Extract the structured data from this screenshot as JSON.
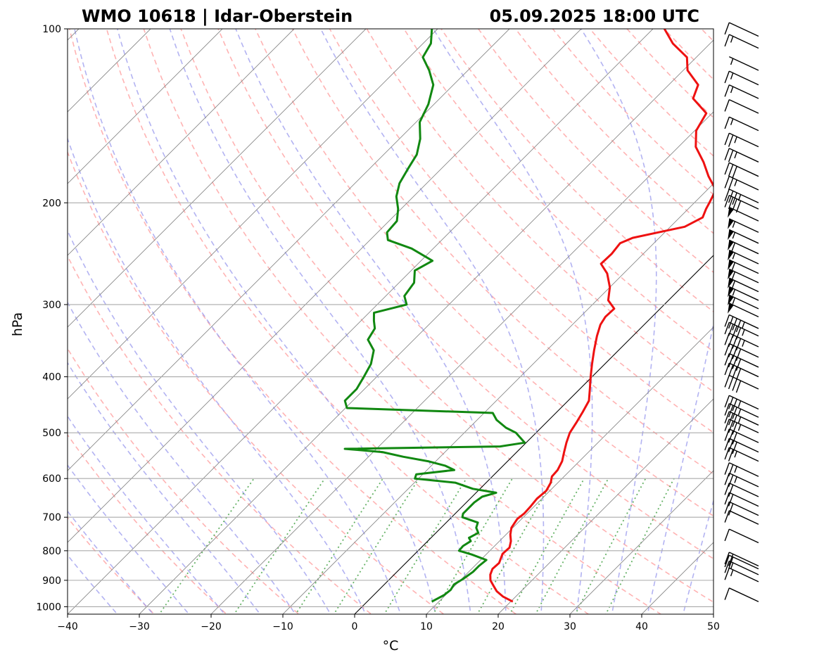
{
  "chart_data": {
    "type": "skew-t",
    "title_left": "WMO 10618 | Idar-Oberstein",
    "title_right": "05.09.2025 18:00 UTC",
    "xlabel": "°C",
    "ylabel": "hPa",
    "xlim": [
      -40,
      50
    ],
    "ylim": [
      1030,
      100
    ],
    "xticks": [
      -40,
      -30,
      -20,
      -10,
      0,
      10,
      20,
      30,
      40,
      50
    ],
    "xtick_labels": [
      "−40",
      "−30",
      "−20",
      "−10",
      "0",
      "10",
      "20",
      "30",
      "40",
      "50"
    ],
    "yticks": [
      1000,
      900,
      800,
      700,
      600,
      500,
      400,
      300,
      200,
      100
    ],
    "ytick_labels": [
      "1000",
      "900",
      "800",
      "700",
      "600",
      "500",
      "400",
      "300",
      "200",
      "100"
    ],
    "grid": true,
    "colors": {
      "temperature": "#ee1111",
      "dewpoint": "#118811",
      "dry_adiabats": "#ff9999",
      "moist_adiabats": "#9999ee",
      "mixing_ratio": "#55aa55",
      "isotherms": "#888888",
      "zero_isotherm": "#000000",
      "isobars": "#aaaaaa",
      "barbs": "#000000"
    },
    "series": [
      {
        "key": "temperature",
        "points": [
          [
            980,
            20.3
          ],
          [
            960,
            18.2
          ],
          [
            940,
            16.6
          ],
          [
            920,
            15.4
          ],
          [
            900,
            14.2
          ],
          [
            880,
            13.4
          ],
          [
            860,
            12.9
          ],
          [
            840,
            13.0
          ],
          [
            810,
            12.2
          ],
          [
            790,
            12.3
          ],
          [
            770,
            11.6
          ],
          [
            750,
            10.6
          ],
          [
            730,
            9.8
          ],
          [
            705,
            9.4
          ],
          [
            690,
            9.6
          ],
          [
            670,
            9.5
          ],
          [
            650,
            9.3
          ],
          [
            630,
            9.5
          ],
          [
            610,
            9.0
          ],
          [
            595,
            8.3
          ],
          [
            580,
            8.2
          ],
          [
            560,
            7.6
          ],
          [
            540,
            6.6
          ],
          [
            520,
            5.6
          ],
          [
            500,
            4.7
          ],
          [
            480,
            4.2
          ],
          [
            460,
            3.6
          ],
          [
            440,
            2.9
          ],
          [
            420,
            1.4
          ],
          [
            400,
            -0.2
          ],
          [
            380,
            -1.8
          ],
          [
            360,
            -3.4
          ],
          [
            340,
            -5.0
          ],
          [
            325,
            -6.1
          ],
          [
            315,
            -6.5
          ],
          [
            305,
            -6.4
          ],
          [
            295,
            -8.4
          ],
          [
            280,
            -10.0
          ],
          [
            265,
            -12.3
          ],
          [
            255,
            -14.5
          ],
          [
            245,
            -14.4
          ],
          [
            235,
            -14.7
          ],
          [
            230,
            -13.7
          ],
          [
            225,
            -10.9
          ],
          [
            220,
            -8.0
          ],
          [
            212,
            -6.8
          ],
          [
            205,
            -7.5
          ],
          [
            200,
            -7.9
          ],
          [
            190,
            -8.8
          ],
          [
            180,
            -11.7
          ],
          [
            170,
            -14.4
          ],
          [
            160,
            -17.6
          ],
          [
            150,
            -19.8
          ],
          [
            140,
            -20.8
          ],
          [
            132,
            -24.7
          ],
          [
            125,
            -25.9
          ],
          [
            118,
            -29.4
          ],
          [
            112,
            -31.3
          ],
          [
            106,
            -35.2
          ],
          [
            100,
            -38.4
          ]
        ]
      },
      {
        "key": "dewpoint",
        "points": [
          [
            980,
            9.0
          ],
          [
            955,
            9.8
          ],
          [
            935,
            10.0
          ],
          [
            915,
            9.7
          ],
          [
            895,
            10.2
          ],
          [
            870,
            10.6
          ],
          [
            850,
            10.6
          ],
          [
            830,
            10.8
          ],
          [
            812,
            8.0
          ],
          [
            800,
            5.7
          ],
          [
            785,
            5.6
          ],
          [
            770,
            6.0
          ],
          [
            760,
            5.3
          ],
          [
            745,
            5.9
          ],
          [
            730,
            4.9
          ],
          [
            715,
            4.4
          ],
          [
            700,
            1.5
          ],
          [
            690,
            1.1
          ],
          [
            675,
            1.1
          ],
          [
            660,
            1.1
          ],
          [
            645,
            1.4
          ],
          [
            635,
            2.8
          ],
          [
            625,
            -1.0
          ],
          [
            610,
            -4.3
          ],
          [
            600,
            -10.5
          ],
          [
            590,
            -10.9
          ],
          [
            580,
            -6.2
          ],
          [
            570,
            -8.1
          ],
          [
            560,
            -11.1
          ],
          [
            550,
            -15.2
          ],
          [
            540,
            -18.7
          ],
          [
            533,
            -24.4
          ],
          [
            528,
            -3.1
          ],
          [
            520,
            -0.2
          ],
          [
            510,
            -1.5
          ],
          [
            500,
            -2.8
          ],
          [
            490,
            -4.9
          ],
          [
            475,
            -7.3
          ],
          [
            462,
            -8.8
          ],
          [
            453,
            -29.8
          ],
          [
            440,
            -31.1
          ],
          [
            420,
            -31.1
          ],
          [
            400,
            -31.8
          ],
          [
            380,
            -32.6
          ],
          [
            360,
            -34.1
          ],
          [
            345,
            -36.4
          ],
          [
            330,
            -37.0
          ],
          [
            320,
            -38.2
          ],
          [
            310,
            -39.3
          ],
          [
            300,
            -35.9
          ],
          [
            290,
            -37.4
          ],
          [
            275,
            -37.9
          ],
          [
            262,
            -39.5
          ],
          [
            252,
            -38.4
          ],
          [
            240,
            -43.0
          ],
          [
            232,
            -47.5
          ],
          [
            225,
            -48.7
          ],
          [
            215,
            -48.9
          ],
          [
            205,
            -50.4
          ],
          [
            195,
            -52.4
          ],
          [
            185,
            -53.8
          ],
          [
            175,
            -54.6
          ],
          [
            165,
            -55.4
          ],
          [
            155,
            -57.1
          ],
          [
            145,
            -59.5
          ],
          [
            135,
            -60.8
          ],
          [
            125,
            -62.8
          ],
          [
            118,
            -65.4
          ],
          [
            112,
            -68.1
          ],
          [
            106,
            -68.9
          ],
          [
            100,
            -70.8
          ]
        ]
      }
    ],
    "wind_barbs": [
      {
        "p": 980,
        "knots": 10
      },
      {
        "p": 905,
        "knots": 15
      },
      {
        "p": 880,
        "knots": 15
      },
      {
        "p": 860,
        "knots": 20
      },
      {
        "p": 850,
        "knots": 20
      },
      {
        "p": 775,
        "knots": 10
      },
      {
        "p": 720,
        "knots": 10
      },
      {
        "p": 695,
        "knots": 20
      },
      {
        "p": 670,
        "knots": 20
      },
      {
        "p": 645,
        "knots": 20
      },
      {
        "p": 620,
        "knots": 25
      },
      {
        "p": 595,
        "knots": 25
      },
      {
        "p": 560,
        "knots": 25
      },
      {
        "p": 540,
        "knots": 30
      },
      {
        "p": 520,
        "knots": 30
      },
      {
        "p": 500,
        "knots": 35
      },
      {
        "p": 485,
        "knots": 35
      },
      {
        "p": 470,
        "knots": 35
      },
      {
        "p": 455,
        "knots": 35
      },
      {
        "p": 420,
        "knots": 40
      },
      {
        "p": 400,
        "knots": 40
      },
      {
        "p": 385,
        "knots": 40
      },
      {
        "p": 370,
        "knots": 40
      },
      {
        "p": 355,
        "knots": 45
      },
      {
        "p": 340,
        "knots": 45
      },
      {
        "p": 330,
        "knots": 45
      },
      {
        "p": 315,
        "knots": 50
      },
      {
        "p": 305,
        "knots": 55
      },
      {
        "p": 295,
        "knots": 55
      },
      {
        "p": 285,
        "knots": 60
      },
      {
        "p": 275,
        "knots": 60
      },
      {
        "p": 265,
        "knots": 60
      },
      {
        "p": 255,
        "knots": 55
      },
      {
        "p": 245,
        "knots": 60
      },
      {
        "p": 235,
        "knots": 55
      },
      {
        "p": 225,
        "knots": 55
      },
      {
        "p": 215,
        "knots": 50
      },
      {
        "p": 205,
        "knots": 40
      },
      {
        "p": 200,
        "knots": 35
      },
      {
        "p": 190,
        "knots": 25
      },
      {
        "p": 180,
        "knots": 30
      },
      {
        "p": 170,
        "knots": 25
      },
      {
        "p": 160,
        "knots": 25
      },
      {
        "p": 150,
        "knots": 15
      },
      {
        "p": 140,
        "knots": 10
      },
      {
        "p": 132,
        "knots": 15
      },
      {
        "p": 125,
        "knots": 15
      },
      {
        "p": 118,
        "knots": 5
      },
      {
        "p": 108,
        "knots": 15
      },
      {
        "p": 103,
        "knots": 10
      }
    ]
  }
}
